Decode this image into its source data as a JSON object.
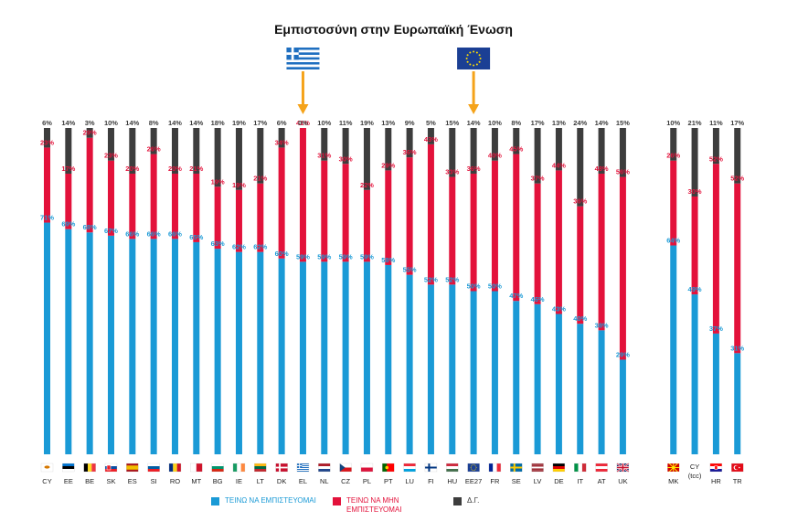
{
  "chart_data": {
    "type": "bar",
    "title": "Εμπιστοσύνη στην Ευρωπαϊκή Ένωση",
    "stacked": true,
    "categories": [
      "CY",
      "EE",
      "BE",
      "SK",
      "ES",
      "SI",
      "RO",
      "MT",
      "BG",
      "IE",
      "LT",
      "DK",
      "EL",
      "NL",
      "CZ",
      "PL",
      "PT",
      "LU",
      "FI",
      "HU",
      "EE27",
      "FR",
      "SE",
      "LV",
      "DE",
      "IT",
      "AT",
      "UK",
      "MK",
      "CY (tcc)",
      "HR",
      "TR"
    ],
    "group_break_after": "UK",
    "series": [
      {
        "name": "ΤΕΙΝΩ ΝΑ ΕΜΠΙΣΤΕΥΟΜΑΙ",
        "color": "#1a9ad6",
        "values": [
          71,
          69,
          68,
          67,
          66,
          66,
          66,
          65,
          63,
          62,
          62,
          60,
          59,
          59,
          59,
          59,
          58,
          55,
          52,
          52,
          50,
          50,
          47,
          46,
          43,
          40,
          38,
          29,
          64,
          49,
          37,
          31
        ]
      },
      {
        "name": "ΤΕΙΝΩ ΝΑ ΜΗΝ ΕΜΠΙΣΤΕΥΟΜΑΙ",
        "color": "#e3123b",
        "values": [
          23,
          17,
          29,
          23,
          20,
          26,
          20,
          21,
          19,
          19,
          21,
          34,
          41,
          31,
          30,
          22,
          29,
          36,
          43,
          33,
          36,
          40,
          45,
          37,
          44,
          36,
          48,
          56,
          26,
          30,
          52,
          52
        ]
      },
      {
        "name": "Δ.Γ.",
        "color": "#3d3d3d",
        "values": [
          6,
          14,
          3,
          10,
          14,
          8,
          14,
          14,
          18,
          19,
          17,
          6,
          0,
          10,
          11,
          19,
          13,
          9,
          5,
          15,
          14,
          10,
          8,
          17,
          13,
          24,
          14,
          15,
          10,
          21,
          11,
          17
        ]
      }
    ],
    "annotations": [
      {
        "points_to": "EL",
        "marker": "greek-flag"
      },
      {
        "points_to": "EE27",
        "marker": "eu-flag"
      }
    ],
    "label_suffix": "%",
    "ylim": [
      0,
      100
    ]
  },
  "legend": {
    "trust": "ΤΕΙΝΩ ΝΑ ΕΜΠΙΣΤΕΥΟΜΑΙ",
    "distrust_line1": "ΤΕΙΝΩ ΝΑ ΜΗΝ",
    "distrust_line2": "ΕΜΠΙΣΤΕΥΟΜΑΙ",
    "dk": "Δ.Γ."
  },
  "colors": {
    "trust": "#1a9ad6",
    "distrust": "#e3123b",
    "dk": "#3d3d3d",
    "arrow": "#f5a31a",
    "eu_blue": "#1b3f94",
    "eu_star": "#ffdd00",
    "greek_blue": "#1f6fc0"
  }
}
